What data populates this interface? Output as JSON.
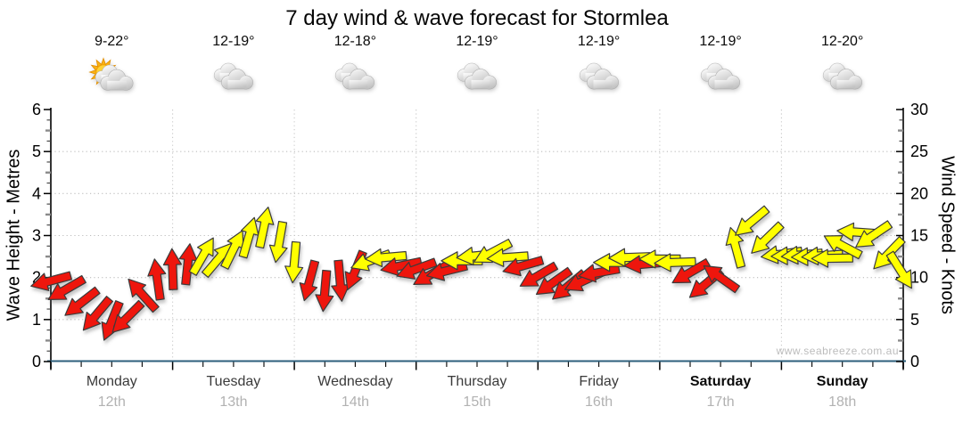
{
  "title": "7 day wind & wave forecast for Stormlea",
  "watermark": "www.seabreeze.com.au",
  "colors": {
    "red_arrow": "#ee1309",
    "yellow_arrow": "#ffff00",
    "arrow_outline": "#3a3a3a",
    "x_axis_line": "#2d5f7c",
    "grid_line": "#c2c2c2",
    "day_name_text": "#3a3a3a",
    "day_date_text": "#b2b2b2",
    "watermark_text": "#bcbcbc"
  },
  "days": [
    {
      "name": "Monday",
      "date": "12th",
      "temp": "9-22°",
      "icon": "partly-sunny",
      "bold": false
    },
    {
      "name": "Tuesday",
      "date": "13th",
      "temp": "12-19°",
      "icon": "cloudy",
      "bold": false
    },
    {
      "name": "Wednesday",
      "date": "14th",
      "temp": "12-18°",
      "icon": "cloudy",
      "bold": false
    },
    {
      "name": "Thursday",
      "date": "15th",
      "temp": "12-19°",
      "icon": "cloudy",
      "bold": false
    },
    {
      "name": "Friday",
      "date": "16th",
      "temp": "12-19°",
      "icon": "cloudy",
      "bold": false
    },
    {
      "name": "Saturday",
      "date": "17th",
      "temp": "12-19°",
      "icon": "cloudy",
      "bold": true
    },
    {
      "name": "Sunday",
      "date": "18th",
      "temp": "12-20°",
      "icon": "cloudy",
      "bold": true
    }
  ],
  "chart_data": {
    "type": "wind-arrow-series",
    "title": "7 day wind & wave forecast for Stormlea",
    "left_axis": {
      "label": "Wave Height - Metres",
      "range": [
        0,
        6
      ],
      "major_ticks": [
        0,
        1,
        2,
        3,
        4,
        5,
        6
      ],
      "unit": "m"
    },
    "right_axis": {
      "label": "Wind Speed - Knots",
      "range": [
        0,
        30
      ],
      "major_ticks": [
        0,
        5,
        10,
        15,
        20,
        25,
        30
      ],
      "unit": "kt"
    },
    "x_axis": {
      "unit": "hours",
      "range_hours": [
        0,
        168
      ],
      "minor_tick_hours": 6,
      "day_boundary_hours": 24,
      "day_labels": [
        "Monday 12th",
        "Tuesday 13th",
        "Wednesday 14th",
        "Thursday 15th",
        "Friday 16th",
        "Saturday 17th",
        "Sunday 18th"
      ]
    },
    "grid": {
      "h_lines_metres": [
        1,
        2,
        3,
        4,
        5
      ],
      "v_lines_at_day_boundaries": true,
      "style": "dotted"
    },
    "arrow_colors": {
      "red": "#ee1309",
      "yellow": "#ffff00"
    },
    "arrows": {
      "columns": [
        "hour",
        "wind_knots",
        "dir_deg_0right_90down",
        "color"
      ],
      "rows": [
        [
          0,
          9.6,
          165,
          "red"
        ],
        [
          3,
          8.6,
          150,
          "red"
        ],
        [
          6,
          7.0,
          142,
          "red"
        ],
        [
          9,
          5.6,
          130,
          "red"
        ],
        [
          12,
          4.8,
          112,
          "red"
        ],
        [
          15,
          5.2,
          135,
          "red"
        ],
        [
          18,
          8.0,
          228,
          "red"
        ],
        [
          21,
          9.8,
          262,
          "red"
        ],
        [
          24,
          11.0,
          268,
          "red"
        ],
        [
          27,
          11.6,
          276,
          "red"
        ],
        [
          30,
          12.6,
          300,
          "yellow"
        ],
        [
          33,
          12.2,
          310,
          "yellow"
        ],
        [
          36,
          13.4,
          296,
          "yellow"
        ],
        [
          39,
          14.8,
          286,
          "yellow"
        ],
        [
          42,
          16.0,
          282,
          "yellow"
        ],
        [
          45,
          14.2,
          100,
          "yellow"
        ],
        [
          48,
          11.8,
          95,
          "yellow"
        ],
        [
          51,
          9.6,
          105,
          "red"
        ],
        [
          54,
          8.4,
          95,
          "red"
        ],
        [
          57,
          9.6,
          85,
          "red"
        ],
        [
          60,
          10.8,
          112,
          "red"
        ],
        [
          63,
          12.0,
          160,
          "yellow"
        ],
        [
          66,
          12.4,
          175,
          "yellow"
        ],
        [
          69,
          11.4,
          168,
          "red"
        ],
        [
          72,
          11.0,
          160,
          "red"
        ],
        [
          75,
          10.4,
          150,
          "red"
        ],
        [
          78,
          10.8,
          166,
          "red"
        ],
        [
          81,
          12.0,
          180,
          "yellow"
        ],
        [
          84,
          12.6,
          174,
          "yellow"
        ],
        [
          87,
          13.0,
          152,
          "yellow"
        ],
        [
          90,
          12.4,
          176,
          "yellow"
        ],
        [
          93,
          11.4,
          164,
          "red"
        ],
        [
          96,
          10.2,
          150,
          "red"
        ],
        [
          99,
          9.4,
          145,
          "red"
        ],
        [
          102,
          9.0,
          140,
          "red"
        ],
        [
          105,
          9.6,
          155,
          "red"
        ],
        [
          108,
          10.6,
          170,
          "red"
        ],
        [
          111,
          11.8,
          180,
          "yellow"
        ],
        [
          114,
          12.4,
          178,
          "yellow"
        ],
        [
          117,
          11.6,
          175,
          "red"
        ],
        [
          120,
          12.2,
          180,
          "yellow"
        ],
        [
          123,
          11.8,
          178,
          "yellow"
        ],
        [
          126,
          10.6,
          150,
          "red"
        ],
        [
          129,
          9.2,
          140,
          "red"
        ],
        [
          132,
          10.0,
          215,
          "red"
        ],
        [
          135,
          13.6,
          255,
          "yellow"
        ],
        [
          138,
          16.6,
          140,
          "yellow"
        ],
        [
          141,
          14.6,
          136,
          "yellow"
        ],
        [
          144,
          12.8,
          172,
          "yellow"
        ],
        [
          146,
          12.6,
          178,
          "yellow"
        ],
        [
          148,
          12.7,
          175,
          "yellow"
        ],
        [
          150,
          12.5,
          178,
          "yellow"
        ],
        [
          152,
          12.6,
          176,
          "yellow"
        ],
        [
          154,
          12.3,
          179,
          "yellow"
        ],
        [
          156,
          13.8,
          208,
          "yellow"
        ],
        [
          159,
          15.4,
          184,
          "yellow"
        ],
        [
          162,
          15.0,
          146,
          "yellow"
        ],
        [
          165,
          12.8,
          134,
          "yellow"
        ],
        [
          167.5,
          10.8,
          58,
          "yellow"
        ]
      ]
    }
  }
}
